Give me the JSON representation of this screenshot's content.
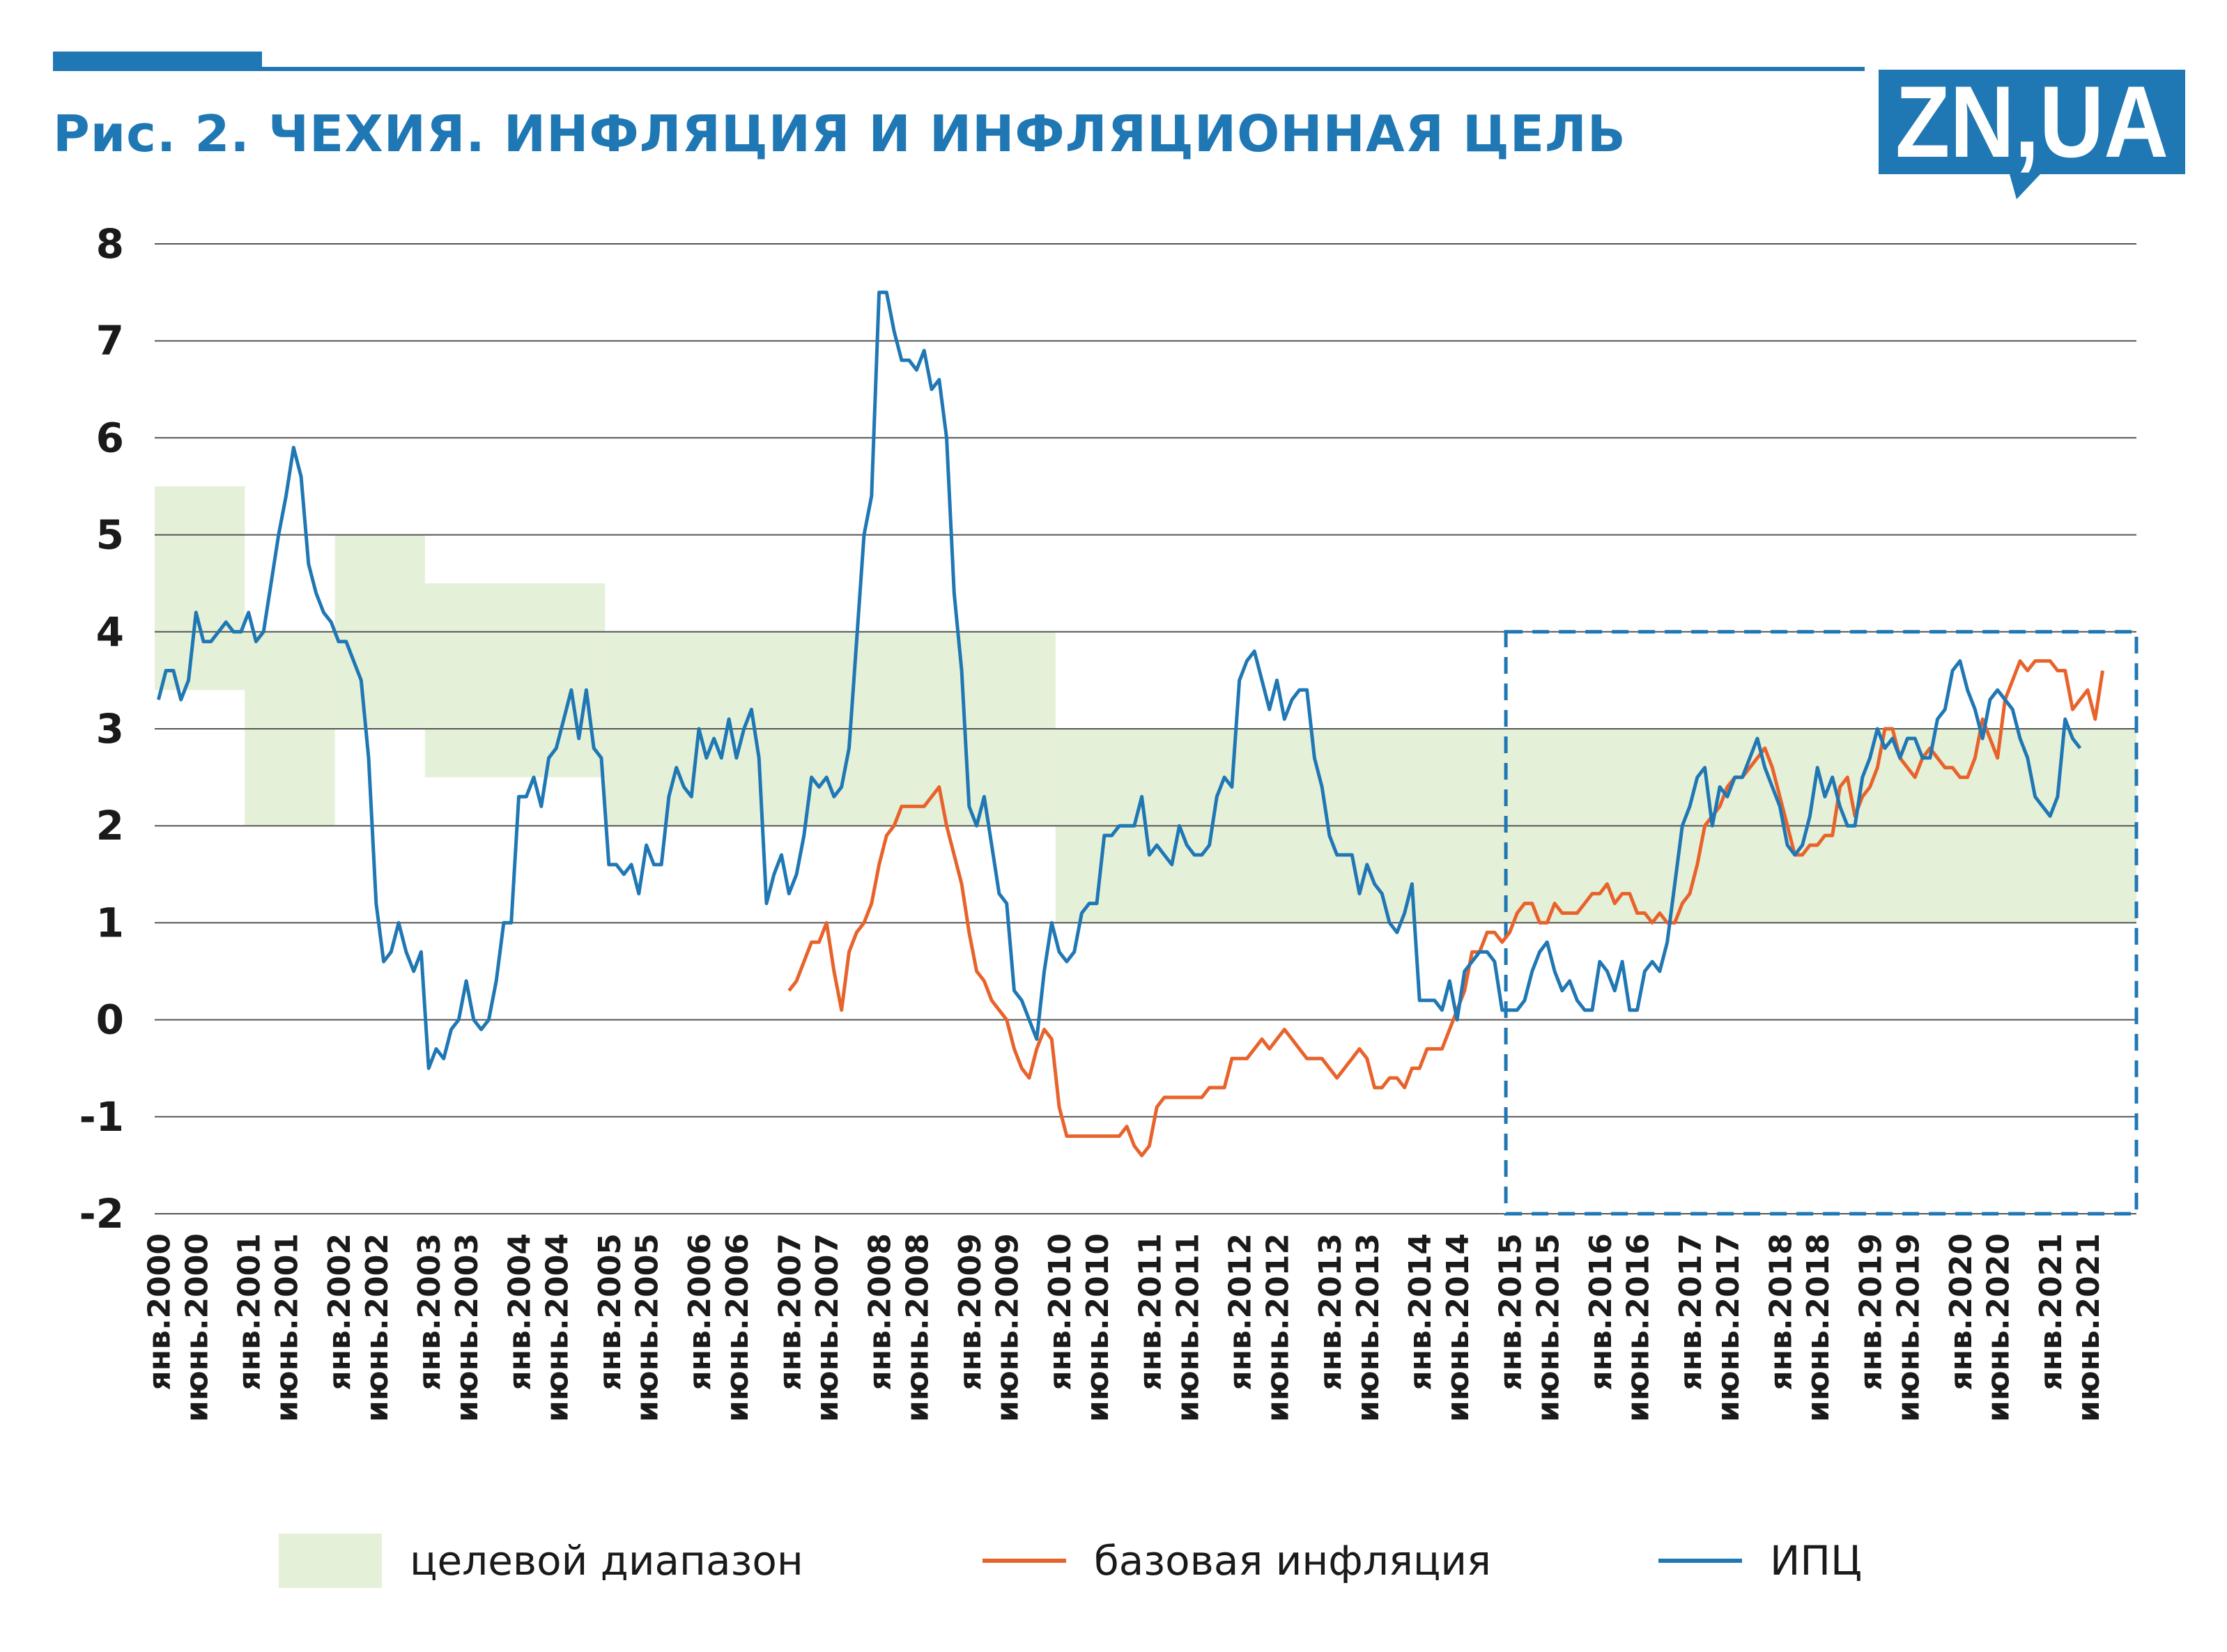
{
  "header": {
    "title": "Рис. 2. ЧЕХИЯ. ИНФЛЯЦИЯ И ИНФЛЯЦИОННАЯ ЦЕЛЬ",
    "logo_text": "ZN,UA"
  },
  "legend": {
    "target": "целевой диапазон",
    "core": "базовая инфляция",
    "cpi": "ИПЦ"
  },
  "chart_data": {
    "type": "line",
    "title": "Рис. 2. ЧЕХИЯ. ИНФЛЯЦИЯ И ИНФЛЯЦИОННАЯ ЦЕЛЬ",
    "xlabel": "",
    "ylabel": "",
    "x_start": "янв.2000",
    "x_end": "дек.2021",
    "ylim": [
      -2,
      8
    ],
    "yticks": [
      "8",
      "7",
      "6",
      "5",
      "4",
      "3",
      "2",
      "1",
      "0",
      "-1",
      "-2"
    ],
    "grid": true,
    "legend_position": "bottom",
    "colors": {
      "target": "#e5f0d8",
      "core": "#e8632b",
      "cpi": "#1f77b4",
      "accent": "#1f77b4"
    },
    "xticks": [
      "янв.2000",
      "июнь.2000",
      "янв.2001",
      "июнь.2001",
      "янв.2002",
      "июнь.2002",
      "янв.2003",
      "июнь.2003",
      "янв.2004",
      "июнь.2004",
      "янв.2005",
      "июнь.2005",
      "янв.2006",
      "июнь.2006",
      "янв.2007",
      "июнь.2007",
      "янв.2008",
      "июнь.2008",
      "янв.2009",
      "июнь.2009",
      "янв.2010",
      "июнь.2010",
      "янв.2011",
      "июнь.2011",
      "янв.2012",
      "июнь.2012",
      "янв.2013",
      "июнь.2013",
      "янв.2014",
      "июнь.2014",
      "янв.2015",
      "июнь.2015",
      "янв.2016",
      "июнь.2016",
      "янв.2017",
      "июнь.2017",
      "янв.2018",
      "июнь.2018",
      "янв.2019",
      "июнь.2019",
      "янв.2020",
      "июнь.2020",
      "янв.2021",
      "июнь.2021"
    ],
    "target_band": [
      {
        "from": "янв.2000",
        "to": "дек.2000",
        "low": 3.4,
        "high": 5.5
      },
      {
        "from": "янв.2001",
        "to": "дек.2001",
        "low": 2.0,
        "high": 4.0
      },
      {
        "from": "янв.2002",
        "to": "дек.2002",
        "low": 3.0,
        "high": 5.0
      },
      {
        "from": "янв.2003",
        "to": "дек.2004",
        "low": 2.5,
        "high": 4.5
      },
      {
        "from": "янв.2005",
        "to": "дек.2009",
        "low": 2.0,
        "high": 4.0
      },
      {
        "from": "янв.2010",
        "to": "дек.2021",
        "low": 1.0,
        "high": 3.0
      }
    ],
    "highlight_box": {
      "from": "янв.2015",
      "to": "дек.2021",
      "low": -2,
      "high": 4
    },
    "series": [
      {
        "name": "ИПЦ",
        "x_start": "янв.2000",
        "values": [
          3.3,
          3.6,
          3.6,
          3.3,
          3.5,
          4.2,
          3.9,
          3.9,
          4.0,
          4.1,
          4.0,
          4.0,
          4.2,
          3.9,
          4.0,
          4.5,
          5.0,
          5.4,
          5.9,
          5.6,
          4.7,
          4.4,
          4.2,
          4.1,
          3.9,
          3.9,
          3.7,
          3.5,
          2.7,
          1.2,
          0.6,
          0.7,
          1.0,
          0.7,
          0.5,
          0.7,
          -0.5,
          -0.3,
          -0.4,
          -0.1,
          0.0,
          0.4,
          0.0,
          -0.1,
          0.0,
          0.4,
          1.0,
          1.0,
          2.3,
          2.3,
          2.5,
          2.2,
          2.7,
          2.8,
          3.1,
          3.4,
          2.9,
          3.4,
          2.8,
          2.7,
          1.6,
          1.6,
          1.5,
          1.6,
          1.3,
          1.8,
          1.6,
          1.6,
          2.3,
          2.6,
          2.4,
          2.3,
          3.0,
          2.7,
          2.9,
          2.7,
          3.1,
          2.7,
          3.0,
          3.2,
          2.7,
          1.2,
          1.5,
          1.7,
          1.3,
          1.5,
          1.9,
          2.5,
          2.4,
          2.5,
          2.3,
          2.4,
          2.8,
          3.9,
          5.0,
          5.4,
          7.5,
          7.5,
          7.1,
          6.8,
          6.8,
          6.7,
          6.9,
          6.5,
          6.6,
          6.0,
          4.4,
          3.6,
          2.2,
          2.0,
          2.3,
          1.8,
          1.3,
          1.2,
          0.3,
          0.2,
          0.0,
          -0.2,
          0.5,
          1.0,
          0.7,
          0.6,
          0.7,
          1.1,
          1.2,
          1.2,
          1.9,
          1.9,
          2.0,
          2.0,
          2.0,
          2.3,
          1.7,
          1.8,
          1.7,
          1.6,
          2.0,
          1.8,
          1.7,
          1.7,
          1.8,
          2.3,
          2.5,
          2.4,
          3.5,
          3.7,
          3.8,
          3.5,
          3.2,
          3.5,
          3.1,
          3.3,
          3.4,
          3.4,
          2.7,
          2.4,
          1.9,
          1.7,
          1.7,
          1.7,
          1.3,
          1.6,
          1.4,
          1.3,
          1.0,
          0.9,
          1.1,
          1.4,
          0.2,
          0.2,
          0.2,
          0.1,
          0.4,
          0.0,
          0.5,
          0.6,
          0.7,
          0.7,
          0.6,
          0.1,
          0.1,
          0.1,
          0.2,
          0.5,
          0.7,
          0.8,
          0.5,
          0.3,
          0.4,
          0.2,
          0.1,
          0.1,
          0.6,
          0.5,
          0.3,
          0.6,
          0.1,
          0.1,
          0.5,
          0.6,
          0.5,
          0.8,
          1.4,
          2.0,
          2.2,
          2.5,
          2.6,
          2.0,
          2.4,
          2.3,
          2.5,
          2.5,
          2.7,
          2.9,
          2.6,
          2.4,
          2.2,
          1.8,
          1.7,
          1.8,
          2.1,
          2.6,
          2.3,
          2.5,
          2.2,
          2.0,
          2.0,
          2.5,
          2.7,
          3.0,
          2.8,
          2.9,
          2.7,
          2.9,
          2.9,
          2.7,
          2.7,
          3.1,
          3.2,
          3.6,
          3.7,
          3.4,
          3.2,
          2.9,
          3.3,
          3.4,
          3.3,
          3.2,
          2.9,
          2.7,
          2.3,
          2.2,
          2.1,
          2.3,
          3.1,
          2.9,
          2.8
        ],
        "color": "#1f77b4"
      },
      {
        "name": "базовая инфляция",
        "x_start": "янв.2007",
        "values": [
          0.3,
          0.4,
          0.6,
          0.8,
          0.8,
          1.0,
          0.5,
          0.1,
          0.7,
          0.9,
          1.0,
          1.2,
          1.6,
          1.9,
          2.0,
          2.2,
          2.2,
          2.2,
          2.2,
          2.3,
          2.4,
          2.0,
          1.7,
          1.4,
          0.9,
          0.5,
          0.4,
          0.2,
          0.1,
          0.0,
          -0.3,
          -0.5,
          -0.6,
          -0.3,
          -0.1,
          -0.2,
          -0.9,
          -1.2,
          -1.2,
          -1.2,
          -1.2,
          -1.2,
          -1.2,
          -1.2,
          -1.2,
          -1.1,
          -1.3,
          -1.4,
          -1.3,
          -0.9,
          -0.8,
          -0.8,
          -0.8,
          -0.8,
          -0.8,
          -0.8,
          -0.7,
          -0.7,
          -0.7,
          -0.4,
          -0.4,
          -0.4,
          -0.3,
          -0.2,
          -0.3,
          -0.2,
          -0.1,
          -0.2,
          -0.3,
          -0.4,
          -0.4,
          -0.4,
          -0.5,
          -0.6,
          -0.5,
          -0.4,
          -0.3,
          -0.4,
          -0.7,
          -0.7,
          -0.6,
          -0.6,
          -0.7,
          -0.5,
          -0.5,
          -0.3,
          -0.3,
          -0.3,
          -0.1,
          0.1,
          0.3,
          0.7,
          0.7,
          0.9,
          0.9,
          0.8,
          0.9,
          1.1,
          1.2,
          1.2,
          1.0,
          1.0,
          1.2,
          1.1,
          1.1,
          1.1,
          1.2,
          1.3,
          1.3,
          1.4,
          1.2,
          1.3,
          1.3,
          1.1,
          1.1,
          1.0,
          1.1,
          1.0,
          1.0,
          1.2,
          1.3,
          1.6,
          2.0,
          2.1,
          2.2,
          2.4,
          2.5,
          2.5,
          2.6,
          2.7,
          2.8,
          2.6,
          2.3,
          2.0,
          1.7,
          1.7,
          1.8,
          1.8,
          1.9,
          1.9,
          2.4,
          2.5,
          2.1,
          2.3,
          2.4,
          2.6,
          3.0,
          3.0,
          2.7,
          2.6,
          2.5,
          2.7,
          2.8,
          2.7,
          2.6,
          2.6,
          2.5,
          2.5,
          2.7,
          3.1,
          2.9,
          2.7,
          3.3,
          3.5,
          3.7,
          3.6,
          3.7,
          3.7,
          3.7,
          3.6,
          3.6,
          3.2,
          3.3,
          3.4,
          3.1,
          3.6
        ],
        "color": "#e8632b"
      }
    ]
  }
}
